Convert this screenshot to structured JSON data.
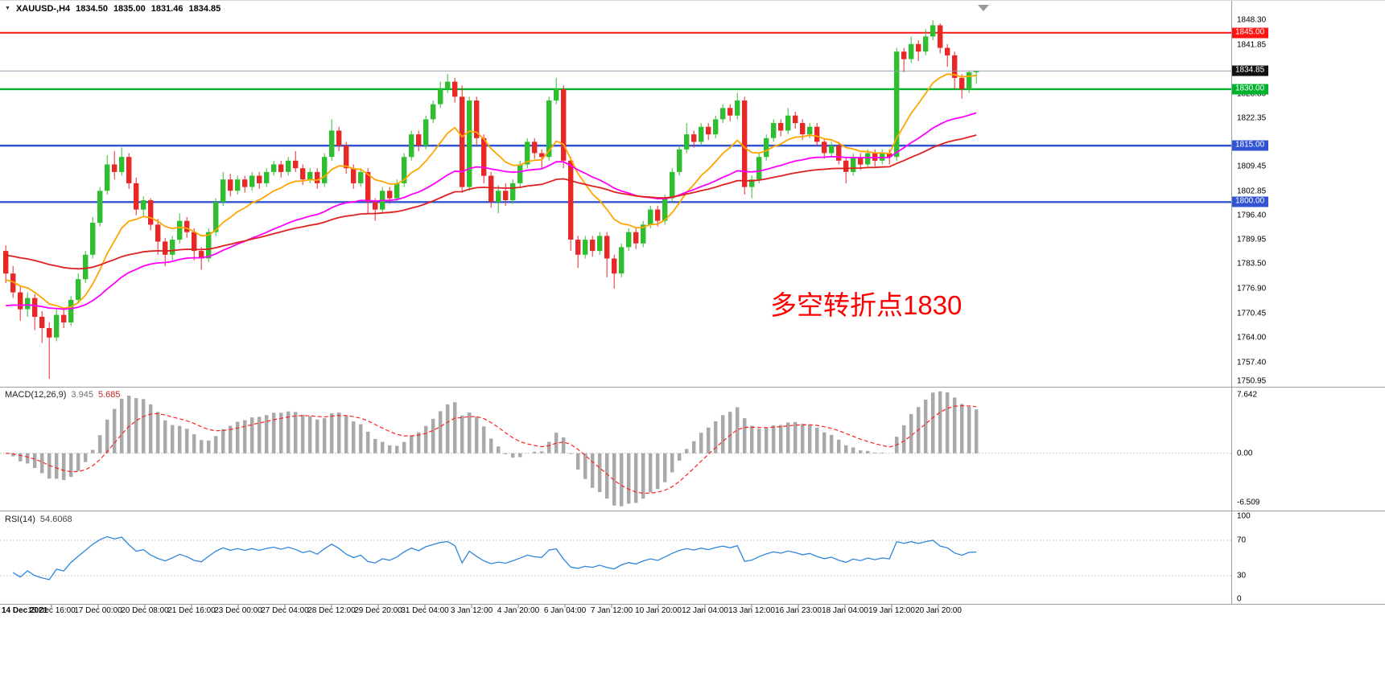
{
  "header": {
    "dropdown_icon": "▼",
    "symbol_label": "XAUUSD-,H4",
    "open": "1834.50",
    "high": "1835.00",
    "low": "1831.46",
    "close": "1834.85"
  },
  "annotation": {
    "text": "多空转折点1830",
    "color": "#fe0000"
  },
  "colors": {
    "bull": "#2fbe2f",
    "bear": "#e82727",
    "separator": "#9e9e9e",
    "axis_text": "#000000",
    "time_tick": "#777777"
  },
  "price_badges": [
    {
      "text": "1845.00",
      "price": 1845.0,
      "bg": "#ff1414"
    },
    {
      "text": "1834.85",
      "price": 1834.85,
      "bg": "#111111"
    },
    {
      "text": "1830.00",
      "price": 1830.0,
      "bg": "#00b32c"
    },
    {
      "text": "1815.00",
      "price": 1815.0,
      "bg": "#3254d2"
    },
    {
      "text": "1800.00",
      "price": 1800.0,
      "bg": "#3254d2"
    }
  ],
  "chart_data": {
    "type": "candlestick",
    "title": "XAUUSD- H4",
    "price_axis": {
      "max": 1853.5,
      "min": 1750.9,
      "ticks": [
        "1848.30",
        "1841.85",
        "1828.80",
        "1822.35",
        "1809.45",
        "1802.85",
        "1796.40",
        "1789.95",
        "1783.50",
        "1776.90",
        "1770.45",
        "1764.00",
        "1757.40",
        "1750.95"
      ]
    },
    "time_labels": [
      "14 Dec 2021",
      "15 Dec 16:00",
      "17 Dec 00:00",
      "20 Dec 08:00",
      "21 Dec 16:00",
      "23 Dec 00:00",
      "27 Dec 04:00",
      "28 Dec 12:00",
      "29 Dec 20:00",
      "31 Dec 04:00",
      "3 Jan 12:00",
      "4 Jan 20:00",
      "6 Jan 04:00",
      "7 Jan 12:00",
      "10 Jan 20:00",
      "12 Jan 04:00",
      "13 Jan 12:00",
      "16 Jan 23:00",
      "18 Jan 04:00",
      "19 Jan 12:00",
      "20 Jan 20:00"
    ],
    "candles": [
      [
        1787,
        1788.5,
        1778.5,
        1781
      ],
      [
        1781,
        1783,
        1774.5,
        1776
      ],
      [
        1776,
        1777.5,
        1768.5,
        1771.5
      ],
      [
        1771.5,
        1776,
        1769.5,
        1774.5
      ],
      [
        1774.5,
        1775.5,
        1766,
        1769.5
      ],
      [
        1769.5,
        1771,
        1762.5,
        1766.5
      ],
      [
        1766.5,
        1768,
        1753,
        1764
      ],
      [
        1764,
        1771.5,
        1763,
        1770
      ],
      [
        1770,
        1772,
        1766.5,
        1768
      ],
      [
        1768,
        1775,
        1767,
        1774
      ],
      [
        1774,
        1781,
        1773,
        1779.5
      ],
      [
        1779.5,
        1787,
        1778.5,
        1786
      ],
      [
        1786,
        1796,
        1785,
        1794.5
      ],
      [
        1794.5,
        1804,
        1793.5,
        1803
      ],
      [
        1803,
        1812.5,
        1802,
        1810
      ],
      [
        1810,
        1813.5,
        1806,
        1808
      ],
      [
        1808,
        1814.5,
        1807,
        1812
      ],
      [
        1812,
        1813,
        1803.5,
        1805
      ],
      [
        1805,
        1806.5,
        1796.5,
        1798
      ],
      [
        1798,
        1801.5,
        1796,
        1800.5
      ],
      [
        1800.5,
        1801,
        1792.5,
        1794
      ],
      [
        1794,
        1795.5,
        1786,
        1789.5
      ],
      [
        1789.5,
        1790.5,
        1783,
        1786
      ],
      [
        1786,
        1791,
        1784.5,
        1790
      ],
      [
        1790,
        1797,
        1789,
        1795
      ],
      [
        1795,
        1796,
        1790.5,
        1792
      ],
      [
        1792,
        1793,
        1784.5,
        1787
      ],
      [
        1787,
        1788,
        1782,
        1785
      ],
      [
        1785,
        1793,
        1784,
        1792
      ],
      [
        1792,
        1801,
        1791,
        1800
      ],
      [
        1800,
        1808,
        1799,
        1806
      ],
      [
        1806,
        1807.5,
        1801.5,
        1803
      ],
      [
        1803,
        1807,
        1802,
        1806
      ],
      [
        1806,
        1807,
        1802.5,
        1804
      ],
      [
        1804,
        1808,
        1803,
        1807
      ],
      [
        1807,
        1808,
        1803.5,
        1805
      ],
      [
        1805,
        1809,
        1804,
        1808
      ],
      [
        1808,
        1811,
        1807,
        1810
      ],
      [
        1810,
        1811,
        1806.5,
        1808
      ],
      [
        1808,
        1812,
        1807,
        1811
      ],
      [
        1811,
        1813.5,
        1808,
        1809
      ],
      [
        1809,
        1810,
        1804.5,
        1806
      ],
      [
        1806,
        1809,
        1805,
        1808
      ],
      [
        1808,
        1809,
        1803.5,
        1805
      ],
      [
        1805,
        1813,
        1804,
        1812
      ],
      [
        1812,
        1822,
        1811,
        1819
      ],
      [
        1819,
        1820,
        1813.5,
        1815
      ],
      [
        1815,
        1816,
        1807.5,
        1809
      ],
      [
        1809,
        1810,
        1803.5,
        1805
      ],
      [
        1805,
        1809,
        1804,
        1808
      ],
      [
        1808,
        1809,
        1797,
        1800
      ],
      [
        1800,
        1801,
        1795,
        1798
      ],
      [
        1798,
        1804,
        1797,
        1803
      ],
      [
        1803,
        1804,
        1799.5,
        1801
      ],
      [
        1801,
        1806,
        1800,
        1805
      ],
      [
        1805,
        1813,
        1804,
        1812
      ],
      [
        1812,
        1819,
        1811,
        1818
      ],
      [
        1818,
        1819,
        1813.5,
        1815
      ],
      [
        1815,
        1823,
        1814,
        1822
      ],
      [
        1822,
        1827,
        1821,
        1826
      ],
      [
        1826,
        1832,
        1825,
        1830
      ],
      [
        1830,
        1834,
        1829,
        1832
      ],
      [
        1832,
        1833,
        1826.5,
        1828
      ],
      [
        1828,
        1831,
        1802.5,
        1804
      ],
      [
        1804,
        1828,
        1803,
        1827
      ],
      [
        1827,
        1828,
        1815,
        1817
      ],
      [
        1817,
        1818,
        1805,
        1807
      ],
      [
        1807,
        1808,
        1798.5,
        1800
      ],
      [
        1800,
        1804.5,
        1797,
        1803
      ],
      [
        1803,
        1805,
        1799,
        1800.5
      ],
      [
        1800.5,
        1806,
        1799.5,
        1805
      ],
      [
        1805,
        1811,
        1804,
        1810
      ],
      [
        1810,
        1817,
        1809,
        1816
      ],
      [
        1816,
        1817,
        1811.5,
        1813
      ],
      [
        1813,
        1814,
        1809,
        1812
      ],
      [
        1812,
        1828,
        1811,
        1827
      ],
      [
        1827,
        1833,
        1826,
        1830
      ],
      [
        1830,
        1831,
        1809,
        1811
      ],
      [
        1811,
        1812,
        1787,
        1790
      ],
      [
        1790,
        1791,
        1782.5,
        1786
      ],
      [
        1786,
        1791,
        1785,
        1790
      ],
      [
        1790,
        1791,
        1785.5,
        1787
      ],
      [
        1787,
        1792,
        1786,
        1791
      ],
      [
        1791,
        1792,
        1780,
        1785
      ],
      [
        1785,
        1786,
        1777,
        1781
      ],
      [
        1781,
        1789,
        1780,
        1788
      ],
      [
        1788,
        1793,
        1787,
        1792
      ],
      [
        1792,
        1793,
        1787.5,
        1789
      ],
      [
        1789,
        1795,
        1788,
        1794
      ],
      [
        1794,
        1799,
        1793,
        1798
      ],
      [
        1798,
        1799,
        1793.5,
        1795
      ],
      [
        1795,
        1802,
        1794,
        1801
      ],
      [
        1801,
        1809,
        1800,
        1808
      ],
      [
        1808,
        1815,
        1807,
        1814
      ],
      [
        1814,
        1821,
        1813,
        1818
      ],
      [
        1818,
        1819,
        1814.5,
        1816
      ],
      [
        1816,
        1821,
        1815,
        1820
      ],
      [
        1820,
        1821,
        1816.5,
        1818
      ],
      [
        1818,
        1823,
        1817,
        1822
      ],
      [
        1822,
        1826,
        1821,
        1825
      ],
      [
        1825,
        1826,
        1821.5,
        1823
      ],
      [
        1823,
        1829,
        1822,
        1827
      ],
      [
        1827,
        1828,
        1802,
        1804
      ],
      [
        1804,
        1807,
        1801,
        1806
      ],
      [
        1806,
        1813,
        1805,
        1812
      ],
      [
        1812,
        1818,
        1811,
        1817
      ],
      [
        1817,
        1822,
        1816,
        1821
      ],
      [
        1821,
        1822,
        1817.5,
        1819
      ],
      [
        1819,
        1825,
        1818,
        1823
      ],
      [
        1823,
        1824,
        1819.5,
        1821
      ],
      [
        1821,
        1822,
        1816.5,
        1818
      ],
      [
        1818,
        1821,
        1817,
        1820
      ],
      [
        1820,
        1821,
        1815,
        1816
      ],
      [
        1816,
        1817,
        1811.5,
        1813
      ],
      [
        1813,
        1816,
        1812,
        1815
      ],
      [
        1815,
        1816,
        1810,
        1811
      ],
      [
        1811,
        1812,
        1805,
        1808
      ],
      [
        1808,
        1813,
        1807,
        1812
      ],
      [
        1812,
        1813,
        1808.5,
        1810
      ],
      [
        1810,
        1814,
        1809,
        1813
      ],
      [
        1813,
        1814,
        1809.5,
        1811
      ],
      [
        1811,
        1814,
        1810,
        1813
      ],
      [
        1813,
        1814,
        1810,
        1812
      ],
      [
        1812,
        1841,
        1811,
        1840
      ],
      [
        1840,
        1841,
        1834.5,
        1838
      ],
      [
        1838,
        1844,
        1837,
        1842
      ],
      [
        1842,
        1843,
        1837.5,
        1840
      ],
      [
        1840,
        1846,
        1839,
        1844
      ],
      [
        1844,
        1848.3,
        1843,
        1847
      ],
      [
        1847,
        1847.5,
        1839.5,
        1841
      ],
      [
        1841,
        1842,
        1836,
        1839
      ],
      [
        1839,
        1840,
        1830,
        1833
      ],
      [
        1833,
        1834,
        1827.5,
        1830
      ],
      [
        1830,
        1835,
        1829,
        1834.5
      ],
      [
        1834.5,
        1835,
        1831.46,
        1834.85
      ]
    ],
    "moving_averages": [
      {
        "name": "ma-fast",
        "period": 12,
        "seed": 1779,
        "color": "#ffa500"
      },
      {
        "name": "ma-medium",
        "period": 40,
        "seed": 1772,
        "color": "#ff00ff"
      },
      {
        "name": "ma-slow",
        "period": 70,
        "seed": 1786,
        "color": "#e02020"
      }
    ],
    "horizontal_levels": [
      {
        "price": 1845.0,
        "color": "#ff1414",
        "width": 2
      },
      {
        "price": 1830.0,
        "color": "#00b32c",
        "width": 2.4
      },
      {
        "price": 1815.0,
        "color": "#3254d2",
        "width": 2.4
      },
      {
        "price": 1800.0,
        "color": "#3254d2",
        "width": 2.4
      }
    ],
    "current_price": {
      "value": 1834.85,
      "line_color": "#8fa0b0"
    },
    "indicators": {
      "macd": {
        "label": "MACD(12,26,9)",
        "main_value": "3.945",
        "signal_value": "5.685",
        "hist_color": "#a9a9a9",
        "signal_color": "#ff2222",
        "axis": {
          "max": 8.3,
          "min": -7.1,
          "ticks": [
            {
              "v": 7.642,
              "text": "7.642"
            },
            {
              "v": 0,
              "text": "0.00"
            },
            {
              "v": -6.509,
              "text": "-6.509"
            }
          ]
        }
      },
      "rsi": {
        "label": "RSI(14)",
        "value": "54.6068",
        "line_color": "#2f86dd",
        "levels": [
          70,
          30
        ],
        "axis_ticks": [
          {
            "v": 100,
            "text": "100"
          },
          {
            "v": 70,
            "text": "70"
          },
          {
            "v": 30,
            "text": "30"
          },
          {
            "v": 0,
            "text": "0"
          }
        ]
      }
    }
  }
}
